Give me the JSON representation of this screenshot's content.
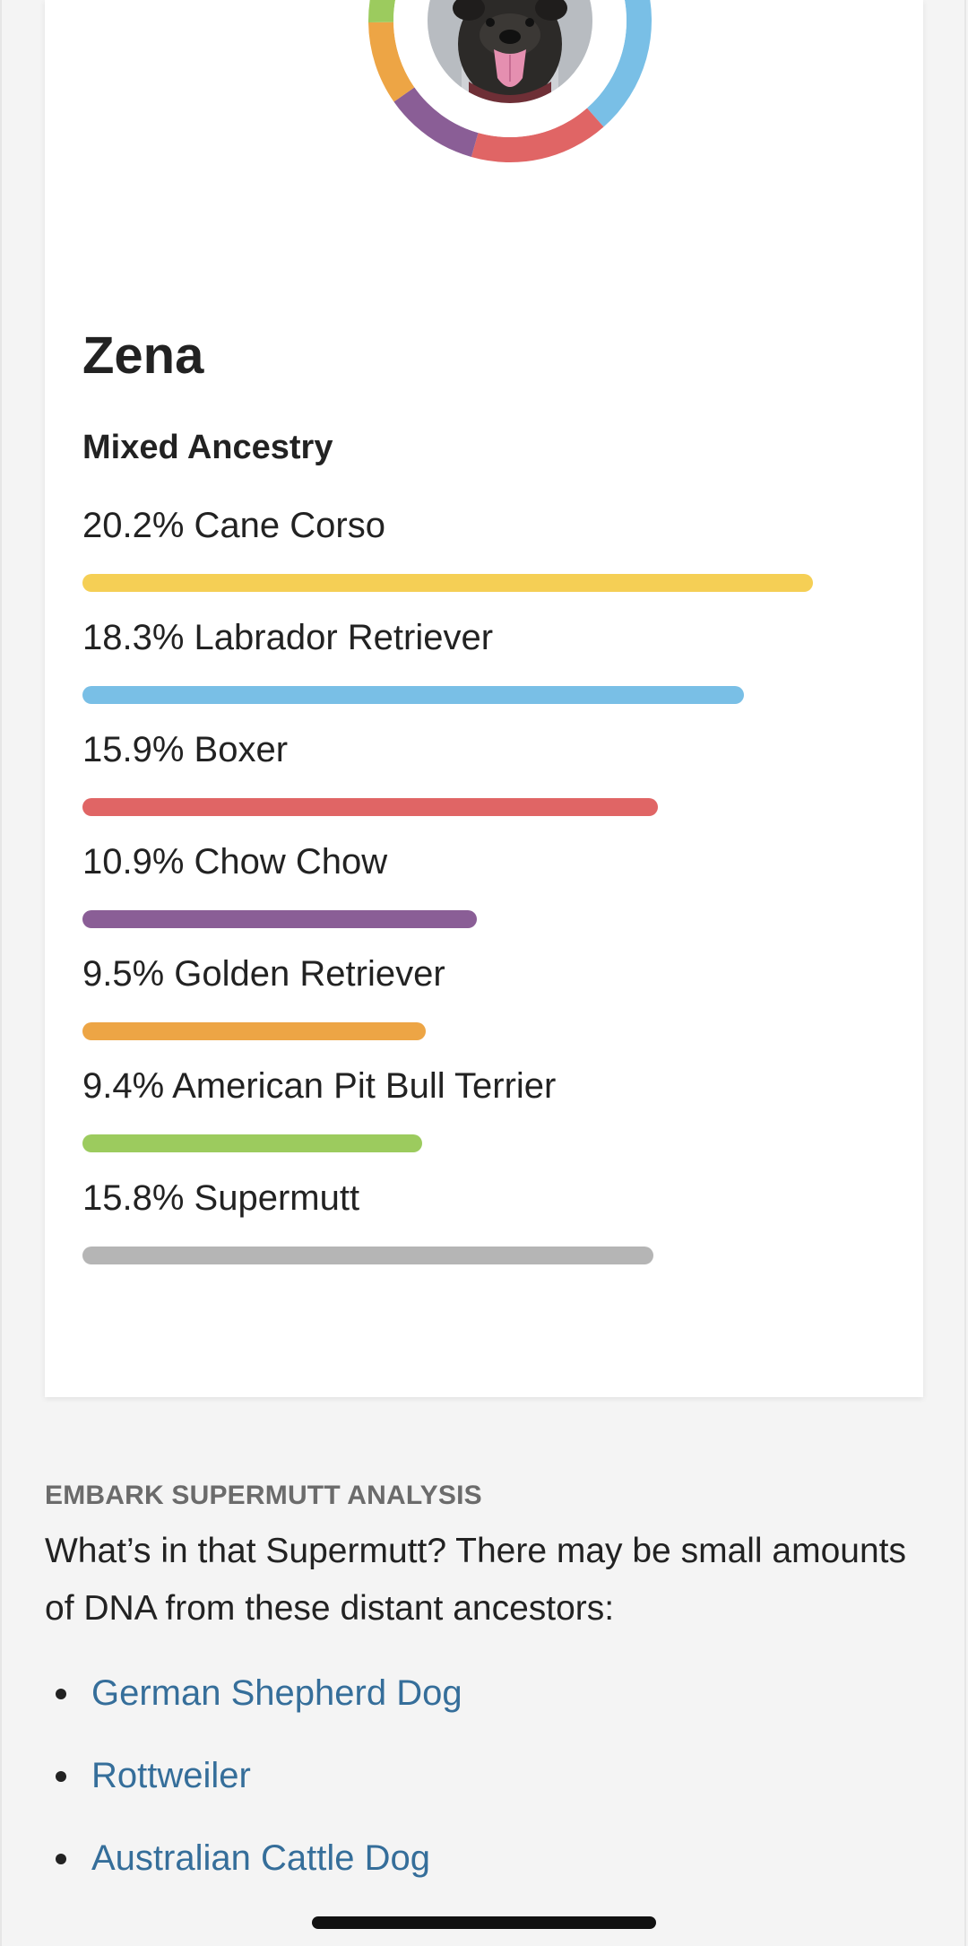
{
  "dog": {
    "name": "Zena"
  },
  "ancestry": {
    "title": "Mixed Ancestry",
    "breeds": [
      {
        "label": "20.2% Cane Corso",
        "percent": 20.2,
        "color": "#f5cf55"
      },
      {
        "label": "18.3% Labrador Retriever",
        "percent": 18.3,
        "color": "#79bfe6"
      },
      {
        "label": "15.9% Boxer",
        "percent": 15.9,
        "color": "#e06565"
      },
      {
        "label": "10.9% Chow Chow",
        "percent": 10.9,
        "color": "#8a5e96"
      },
      {
        "label": "9.5% Golden Retriever",
        "percent": 9.5,
        "color": "#eda545"
      },
      {
        "label": "9.4% American Pit Bull Terrier",
        "percent": 9.4,
        "color": "#9ccb5e"
      },
      {
        "label": "15.8% Supermutt",
        "percent": 15.8,
        "color": "#b5b5b5"
      }
    ]
  },
  "supermutt": {
    "heading": "EMBARK SUPERMUTT ANALYSIS",
    "body": "What’s in that Supermutt? There may be small amounts of DNA from these distant ancestors:",
    "ancestors": [
      "German Shepherd Dog",
      "Rottweiler",
      "Australian Cattle Dog"
    ]
  },
  "icons": {
    "avatar": "dog-photo-avatar",
    "bullet": "bullet-dot"
  }
}
